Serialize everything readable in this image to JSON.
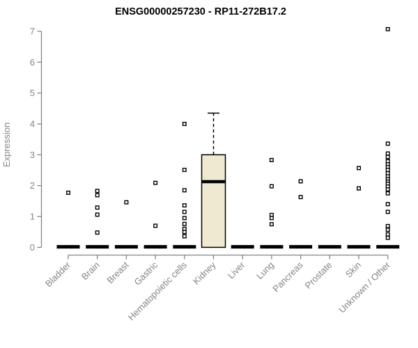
{
  "chart_data": {
    "type": "boxplot",
    "title": "ENSG00000257230 - RP11-272B17.2",
    "ylabel": "Expression",
    "xlabel": "",
    "ylim": [
      0,
      7
    ],
    "yticks": [
      0,
      1,
      2,
      3,
      4,
      5,
      6,
      7
    ],
    "grid": false,
    "legend": false,
    "categories": [
      "Bladder",
      "Brain",
      "Breast",
      "Gastric",
      "Hematopoietic cells",
      "Kidney",
      "Liver",
      "Lung",
      "Pancreas",
      "Prostate",
      "Skin",
      "Unknown / Other"
    ],
    "boxes": [
      {
        "category": "Bladder",
        "q1": 0,
        "median": 0,
        "q3": 0,
        "whisker_low": 0,
        "whisker_high": 0,
        "outliers": [
          1.77
        ]
      },
      {
        "category": "Brain",
        "q1": 0,
        "median": 0,
        "q3": 0,
        "whisker_low": 0,
        "whisker_high": 0,
        "outliers": [
          1.83,
          1.69,
          1.29,
          1.06,
          0.48
        ]
      },
      {
        "category": "Breast",
        "q1": 0,
        "median": 0,
        "q3": 0,
        "whisker_low": 0,
        "whisker_high": 0,
        "outliers": [
          1.46
        ]
      },
      {
        "category": "Gastric",
        "q1": 0,
        "median": 0,
        "q3": 0,
        "whisker_low": 0,
        "whisker_high": 0,
        "outliers": [
          2.09,
          0.7
        ]
      },
      {
        "category": "Hematopoietic cells",
        "q1": 0,
        "median": 0,
        "q3": 0,
        "whisker_low": 0,
        "whisker_high": 0,
        "outliers": [
          4.0,
          2.51,
          1.85,
          1.36,
          1.15,
          0.95,
          0.76,
          0.6,
          0.5,
          0.36
        ]
      },
      {
        "category": "Kidney",
        "q1": 0,
        "median": 2.13,
        "q3": 3.0,
        "whisker_low": 0,
        "whisker_high": 4.35,
        "outliers": []
      },
      {
        "category": "Liver",
        "q1": 0,
        "median": 0,
        "q3": 0,
        "whisker_low": 0,
        "whisker_high": 0,
        "outliers": []
      },
      {
        "category": "Lung",
        "q1": 0,
        "median": 0,
        "q3": 0,
        "whisker_low": 0,
        "whisker_high": 0,
        "outliers": [
          2.83,
          1.98,
          1.05,
          0.95,
          0.75
        ]
      },
      {
        "category": "Pancreas",
        "q1": 0,
        "median": 0,
        "q3": 0,
        "whisker_low": 0,
        "whisker_high": 0,
        "outliers": [
          2.14,
          1.63
        ]
      },
      {
        "category": "Prostate",
        "q1": 0,
        "median": 0,
        "q3": 0,
        "whisker_low": 0,
        "whisker_high": 0,
        "outliers": []
      },
      {
        "category": "Skin",
        "q1": 0,
        "median": 0,
        "q3": 0,
        "whisker_low": 0,
        "whisker_high": 0,
        "outliers": [
          2.57,
          1.91
        ]
      },
      {
        "category": "Unknown / Other",
        "q1": 0,
        "median": 0,
        "q3": 0,
        "whisker_low": 0,
        "whisker_high": 0,
        "outliers": [
          7.07,
          3.36,
          3.04,
          2.93,
          2.79,
          2.69,
          2.6,
          2.51,
          2.4,
          2.3,
          2.21,
          2.13,
          2.06,
          1.97,
          1.88,
          1.75,
          1.4,
          1.15,
          0.69,
          0.57,
          0.42,
          0.31
        ]
      }
    ],
    "colors": {
      "box_fill": "#EFE9D1",
      "box_stroke": "#000000",
      "median": "#000000",
      "whisker": "#000000",
      "outlier_stroke": "#000000",
      "outlier_fill": "#ffffff",
      "axis": "#848484",
      "tick_label": "#848484",
      "title": "#000000",
      "background": "#ffffff"
    }
  }
}
